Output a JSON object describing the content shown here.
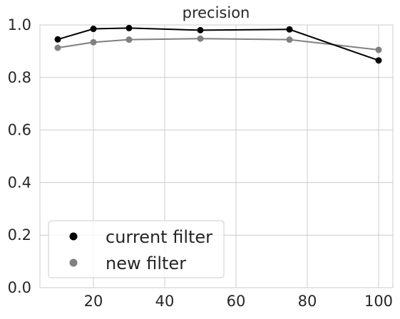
{
  "chart_data": {
    "type": "line",
    "title": "precision",
    "xlabel": "",
    "ylabel": "",
    "x": [
      10,
      20,
      30,
      50,
      75,
      100
    ],
    "xlim": [
      5,
      104
    ],
    "ylim": [
      0.0,
      1.0
    ],
    "xticks": [
      "20",
      "40",
      "60",
      "80",
      "100"
    ],
    "xtick_values": [
      20,
      40,
      60,
      80,
      100
    ],
    "yticks": [
      "0.0",
      "0.2",
      "0.4",
      "0.6",
      "0.8",
      "1.0"
    ],
    "ytick_values": [
      0.0,
      0.2,
      0.4,
      0.6,
      0.8,
      1.0
    ],
    "grid": true,
    "legend_position": "lower-left",
    "series": [
      {
        "name": "current filter",
        "color": "#000000",
        "values": [
          0.945,
          0.985,
          0.988,
          0.98,
          0.983,
          0.865
        ]
      },
      {
        "name": "new filter",
        "color": "#808080",
        "values": [
          0.913,
          0.934,
          0.944,
          0.948,
          0.944,
          0.905
        ]
      }
    ]
  }
}
